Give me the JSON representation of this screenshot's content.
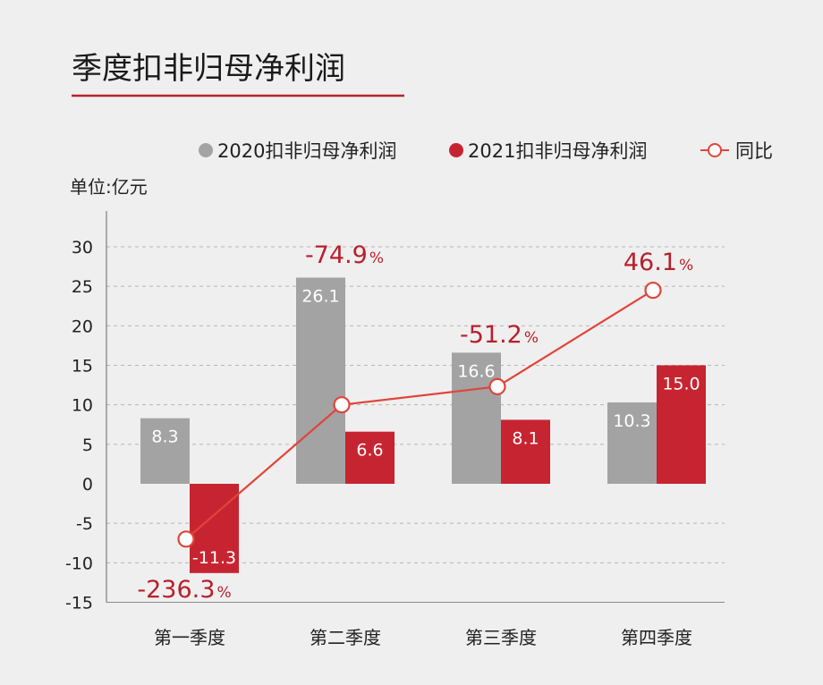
{
  "colors": {
    "series_2020": "#a3a3a3",
    "series_2021": "#c72431",
    "yoy_line": "#e0453a",
    "yoy_text": "#b81f2c",
    "title_underline": "#b5232f",
    "background": "#efefef"
  },
  "chart_data": {
    "type": "bar",
    "title": "季度扣非归母净利润",
    "unit_label": "单位:亿元",
    "categories": [
      "第一季度",
      "第二季度",
      "第三季度",
      "第四季度"
    ],
    "series": [
      {
        "name": "2020扣非归母净利润",
        "values": [
          8.3,
          26.1,
          16.6,
          10.3
        ],
        "labels": [
          "8.3",
          "26.1",
          "16.6",
          "10.3"
        ]
      },
      {
        "name": "2021扣非归母净利润",
        "values": [
          -11.3,
          6.6,
          8.1,
          15.0
        ],
        "labels": [
          "-11.3",
          "6.6",
          "8.1",
          "15.0"
        ]
      }
    ],
    "line_series": {
      "name": "同比",
      "values": [
        -236.3,
        -74.9,
        -51.2,
        46.1
      ],
      "labels": [
        "-236.3",
        "-74.9",
        "-51.2",
        "46.1"
      ],
      "unit": "%",
      "display_levels": [
        -7,
        10,
        12.3,
        24.5
      ]
    },
    "ylim": [
      -15,
      30
    ],
    "yticks": [
      "30",
      "25",
      "20",
      "15",
      "10",
      "5",
      "0",
      "-5",
      "-10",
      "-15"
    ],
    "ytick_values": [
      30,
      25,
      20,
      15,
      10,
      5,
      0,
      -5,
      -10,
      -15
    ],
    "grid": true,
    "legend_position": "top-right"
  }
}
